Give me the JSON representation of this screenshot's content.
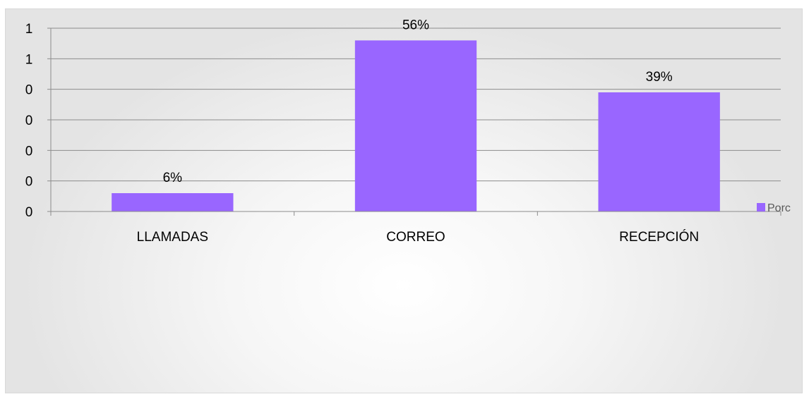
{
  "chart_data": {
    "type": "bar",
    "categories": [
      "LLAMADAS",
      "CORREO",
      "RECEPCIÓN"
    ],
    "series": [
      {
        "name": "Porc",
        "values": [
          0.06,
          0.56,
          0.39
        ],
        "data_labels": [
          "6%",
          "56%",
          "39%"
        ],
        "color": "#9966ff"
      }
    ],
    "ylim": [
      0,
      0.6
    ],
    "yticks": [
      0,
      0.1,
      0.2,
      0.3,
      0.4,
      0.5,
      0.6
    ],
    "ytick_labels": [
      "0",
      "0",
      "0",
      "0",
      "0",
      "1",
      "1"
    ],
    "title": "",
    "xlabel": "",
    "ylabel": "",
    "grid": true,
    "legend_position": "right"
  }
}
